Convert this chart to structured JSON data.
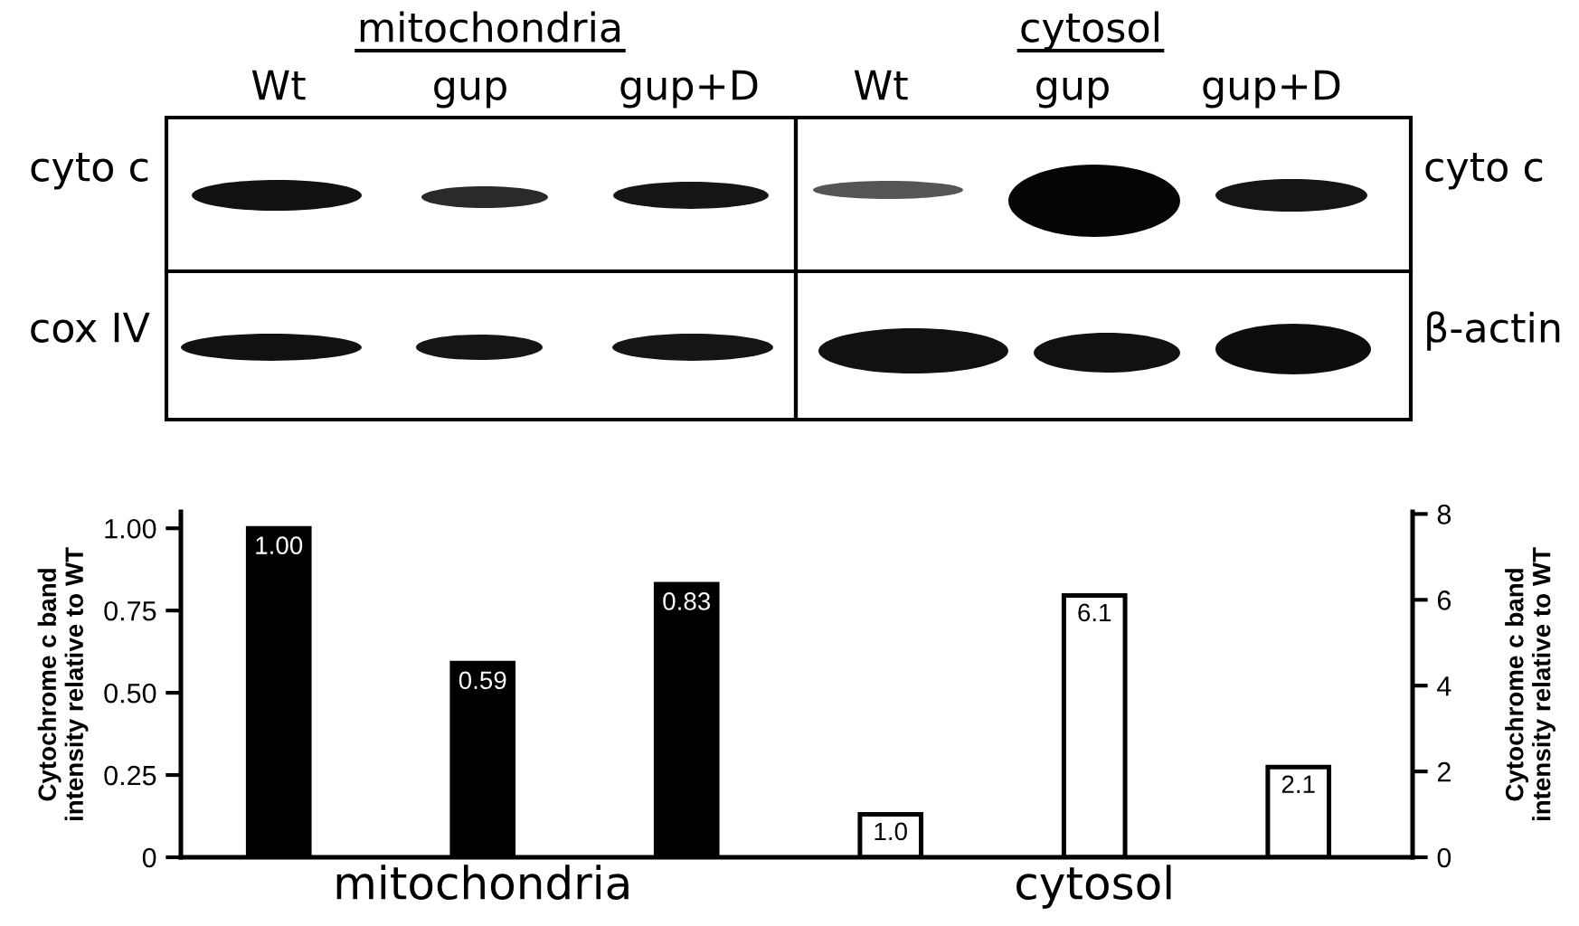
{
  "chart_data": {
    "type": "bar",
    "ylabel": "Cytochrome c band\nintensity relative to WT",
    "y2label": "Cytochrome c band\nintensity relative to WT",
    "categories": [
      null,
      null,
      null,
      null,
      null,
      null
    ],
    "series": [
      {
        "name": "mitochondria",
        "color": "#000000",
        "values": [
          1.0,
          0.59,
          0.83,
          null,
          null,
          null
        ],
        "value_labels": [
          "1.00",
          "0.59",
          "0.83",
          null,
          null,
          null
        ]
      },
      {
        "name": "cytosol",
        "color": "#ffffff",
        "axis": "y2",
        "values": [
          null,
          null,
          null,
          1.0,
          6.1,
          2.1
        ],
        "value_labels": [
          null,
          null,
          null,
          "1.0",
          "6.1",
          "2.1"
        ]
      }
    ],
    "ylim": [
      0,
      1.05
    ],
    "yticks": [
      0,
      0.25,
      {
        "value": 0.5,
        "label": "0.50"
      },
      0.75,
      {
        "value": 1,
        "label": "1.00"
      }
    ],
    "y2lim": [
      0,
      8.05
    ],
    "y2ticks": [
      0,
      2,
      4,
      6,
      8
    ],
    "annotations": [
      "mitochondria",
      "cytosol",
      "Wt",
      "gup",
      "gup+D",
      "Wt",
      "gup",
      "gup+D",
      "cyto c",
      "cox IV",
      "cyto c",
      "β-actin"
    ]
  }
}
